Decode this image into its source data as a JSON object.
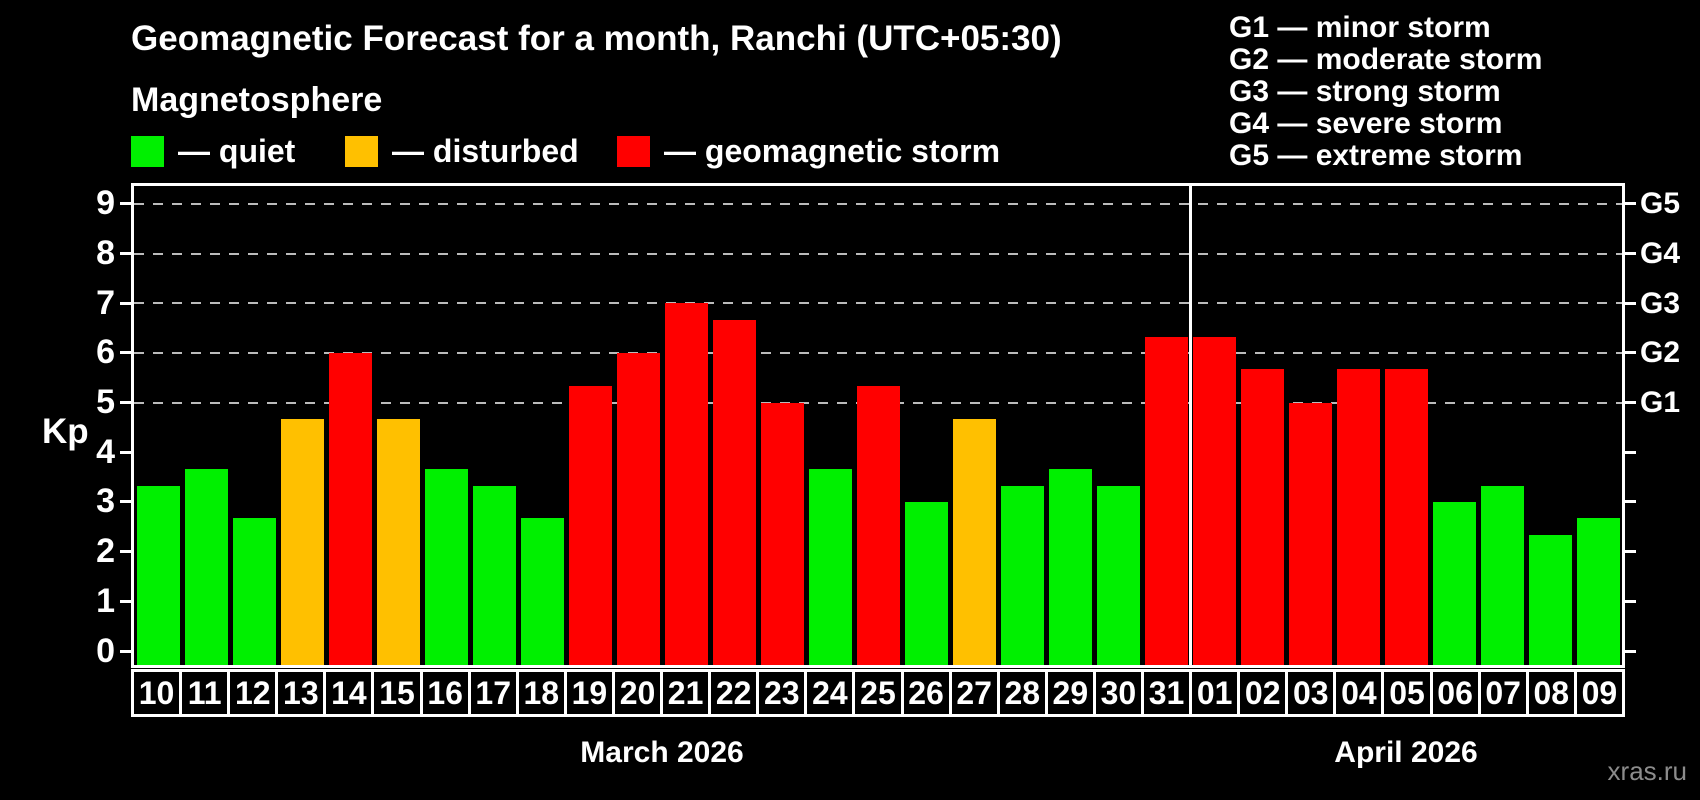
{
  "header": {
    "title": "Geomagnetic Forecast for a month, Ranchi (UTC+05:30)",
    "subtitle": "Magnetosphere"
  },
  "legend": {
    "items": [
      {
        "key": "quiet",
        "label": "— quiet"
      },
      {
        "key": "disturbed",
        "label": "— disturbed"
      },
      {
        "key": "storm",
        "label": "— geomagnetic storm"
      }
    ]
  },
  "g_legend": {
    "items": [
      "G1 — minor storm",
      "G2 — moderate storm",
      "G3 — strong storm",
      "G4 — severe storm",
      "G5 — extreme storm"
    ]
  },
  "axes": {
    "y_label": "Kp",
    "y_ticks": [
      0,
      1,
      2,
      3,
      4,
      5,
      6,
      7,
      8,
      9
    ],
    "right_labels": [
      {
        "label": "G1",
        "kp": 5
      },
      {
        "label": "G2",
        "kp": 6
      },
      {
        "label": "G3",
        "kp": 7
      },
      {
        "label": "G4",
        "kp": 8
      },
      {
        "label": "G5",
        "kp": 9
      }
    ]
  },
  "colors": {
    "quiet": "#00f000",
    "disturbed": "#ffc000",
    "storm": "#ff0000",
    "background": "#000000",
    "grid": "#bbbbbb",
    "axis": "#ffffff",
    "watermark_text": "#8c8c8c"
  },
  "watermark": "xras.ru",
  "chart_data": {
    "type": "bar",
    "title": "Geomagnetic Forecast for a month, Ranchi (UTC+05:30)",
    "xlabel": "",
    "ylabel": "Kp",
    "ylim": [
      0,
      9
    ],
    "grid": "dashed horizontal at Kp 5-9 only",
    "grid_levels": [
      5,
      6,
      7,
      8,
      9
    ],
    "legend_position": "top-left",
    "month_sections": [
      {
        "label": "March 2026",
        "days": 22
      },
      {
        "label": "April 2026",
        "days": 9
      }
    ],
    "categories": [
      "10",
      "11",
      "12",
      "13",
      "14",
      "15",
      "16",
      "17",
      "18",
      "19",
      "20",
      "21",
      "22",
      "23",
      "24",
      "25",
      "26",
      "27",
      "28",
      "29",
      "30",
      "31",
      "01",
      "02",
      "03",
      "04",
      "05",
      "06",
      "07",
      "08",
      "09"
    ],
    "values": [
      3.33,
      3.67,
      2.67,
      4.67,
      6.0,
      4.67,
      3.67,
      3.33,
      2.67,
      5.33,
      6.0,
      7.0,
      6.67,
      5.0,
      3.67,
      5.33,
      3.0,
      4.67,
      3.33,
      3.67,
      3.33,
      6.33,
      6.33,
      5.67,
      5.0,
      5.67,
      5.67,
      3.0,
      3.33,
      2.33,
      2.67
    ],
    "status": [
      "quiet",
      "quiet",
      "quiet",
      "disturbed",
      "storm",
      "disturbed",
      "quiet",
      "quiet",
      "quiet",
      "storm",
      "storm",
      "storm",
      "storm",
      "storm",
      "quiet",
      "storm",
      "quiet",
      "disturbed",
      "quiet",
      "quiet",
      "quiet",
      "storm",
      "storm",
      "storm",
      "storm",
      "storm",
      "storm",
      "quiet",
      "quiet",
      "quiet",
      "quiet"
    ]
  }
}
